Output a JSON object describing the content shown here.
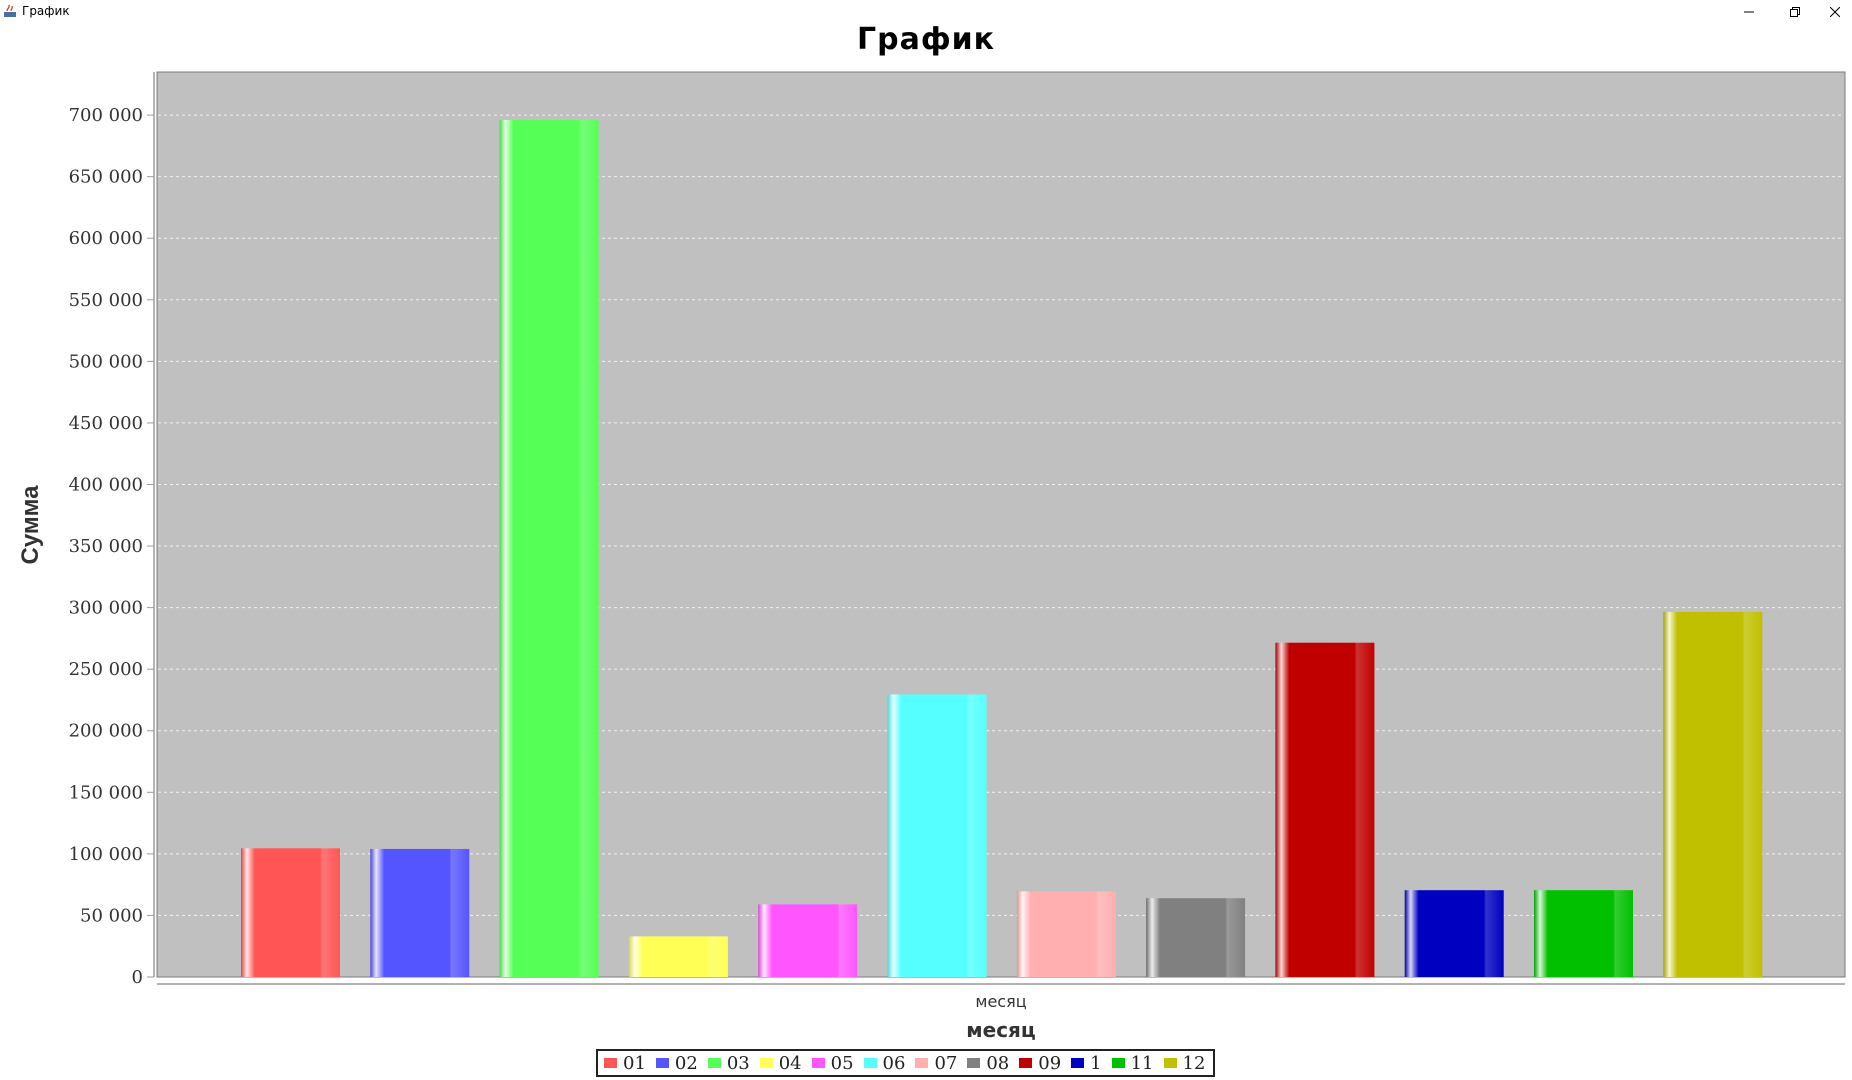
{
  "window": {
    "title": "График"
  },
  "chart_data": {
    "type": "bar",
    "title": "График",
    "xlabel": "месяц",
    "ylabel": "Сумма",
    "category_label": "месяц",
    "ylim": [
      0,
      735000
    ],
    "yticks": [
      {
        "value": 0,
        "label": "0"
      },
      {
        "value": 50000,
        "label": "50 000"
      },
      {
        "value": 100000,
        "label": "100 000"
      },
      {
        "value": 150000,
        "label": "150 000"
      },
      {
        "value": 200000,
        "label": "200 000"
      },
      {
        "value": 250000,
        "label": "250 000"
      },
      {
        "value": 300000,
        "label": "300 000"
      },
      {
        "value": 350000,
        "label": "350 000"
      },
      {
        "value": 400000,
        "label": "400 000"
      },
      {
        "value": 450000,
        "label": "450 000"
      },
      {
        "value": 500000,
        "label": "500 000"
      },
      {
        "value": 550000,
        "label": "550 000"
      },
      {
        "value": 600000,
        "label": "600 000"
      },
      {
        "value": 650000,
        "label": "650 000"
      },
      {
        "value": 700000,
        "label": "700 000"
      }
    ],
    "grid": true,
    "legend_position": "bottom",
    "series": [
      {
        "name": "01",
        "value": 104500,
        "color": "#ff5555"
      },
      {
        "name": "02",
        "value": 104000,
        "color": "#5555ff"
      },
      {
        "name": "03",
        "value": 696000,
        "color": "#55ff55"
      },
      {
        "name": "04",
        "value": 33000,
        "color": "#ffff55"
      },
      {
        "name": "05",
        "value": 59000,
        "color": "#ff55ff"
      },
      {
        "name": "06",
        "value": 229500,
        "color": "#55ffff"
      },
      {
        "name": "07",
        "value": 69500,
        "color": "#ffafaf"
      },
      {
        "name": "08",
        "value": 64000,
        "color": "#808080"
      },
      {
        "name": "09",
        "value": 271500,
        "color": "#c00000"
      },
      {
        "name": "1",
        "value": 70500,
        "color": "#0000c0"
      },
      {
        "name": "11",
        "value": 70500,
        "color": "#00c000"
      },
      {
        "name": "12",
        "value": 296500,
        "color": "#c0c000"
      }
    ]
  }
}
